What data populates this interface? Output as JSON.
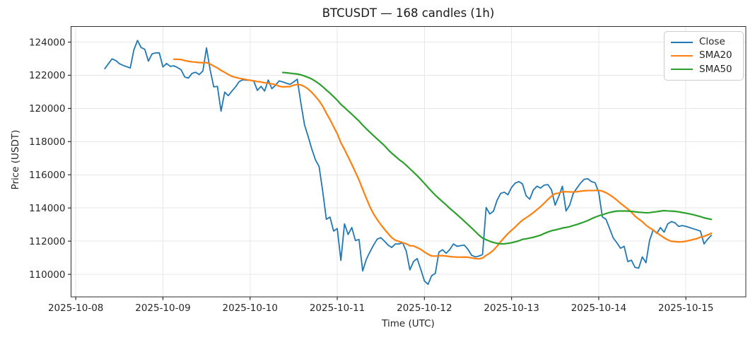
{
  "title": "BTCUSDT — 168 candles (1h)",
  "axes": {
    "x_label": "Time (UTC)",
    "y_label": "Price (USDT)"
  },
  "chart_data": {
    "type": "line",
    "title": "BTCUSDT — 168 candles (1h)",
    "xlabel": "Time (UTC)",
    "ylabel": "Price (USDT)",
    "symbol": "BTCUSDT",
    "interval": "1h",
    "n_candles": 168,
    "first_candle_utc": "2025-10-08 08:00",
    "last_candle_utc": "2025-10-15 07:00",
    "grid": true,
    "grid_color": "#e7e7e7",
    "spine_color": "#2e2e2e",
    "tick_text_color": "#262626",
    "legend_position": "upper right",
    "ylim": [
      108640,
      124940
    ],
    "xlim_hours_from_2025_10_08": [
      -1.3,
      184.5
    ],
    "y_ticks": [
      110000,
      112000,
      114000,
      116000,
      118000,
      120000,
      122000,
      124000
    ],
    "x_ticks": [
      {
        "hour": 0,
        "label": "2025-10-08"
      },
      {
        "hour": 24,
        "label": "2025-10-09"
      },
      {
        "hour": 48,
        "label": "2025-10-10"
      },
      {
        "hour": 72,
        "label": "2025-10-11"
      },
      {
        "hour": 96,
        "label": "2025-10-12"
      },
      {
        "hour": 120,
        "label": "2025-10-13"
      },
      {
        "hour": 144,
        "label": "2025-10-14"
      },
      {
        "hour": 168,
        "label": "2025-10-15"
      }
    ],
    "series": [
      {
        "name": "Close",
        "color": "#1f77b4",
        "line_width": 1.8,
        "values": [
          122400,
          122700,
          122990,
          122890,
          122700,
          122600,
          122520,
          122440,
          123530,
          124100,
          123670,
          123570,
          122850,
          123290,
          123350,
          123350,
          122500,
          122710,
          122540,
          122570,
          122470,
          122330,
          121900,
          121830,
          122110,
          122180,
          122040,
          122260,
          123650,
          122330,
          121300,
          121330,
          119840,
          120980,
          120770,
          121050,
          121300,
          121620,
          121730,
          121700,
          121700,
          121650,
          121090,
          121330,
          121050,
          121715,
          121190,
          121400,
          121660,
          121600,
          121520,
          121450,
          121600,
          121760,
          120300,
          119000,
          118300,
          117550,
          116900,
          116500,
          115000,
          113320,
          113450,
          112610,
          112760,
          110840,
          113040,
          112400,
          112820,
          112040,
          112100,
          110200,
          110900,
          111350,
          111760,
          112120,
          112210,
          112000,
          111760,
          111620,
          111830,
          111830,
          111900,
          111400,
          110270,
          110770,
          110950,
          110300,
          109600,
          109400,
          109920,
          110060,
          111340,
          111480,
          111270,
          111500,
          111830,
          111690,
          111730,
          111760,
          111500,
          111150,
          111050,
          111100,
          111190,
          114030,
          113640,
          113800,
          114460,
          114880,
          114950,
          114800,
          115240,
          115500,
          115590,
          115450,
          114740,
          114530,
          115090,
          115310,
          115200,
          115380,
          115410,
          115090,
          114170,
          114700,
          115310,
          113820,
          114170,
          114880,
          115200,
          115500,
          115730,
          115760,
          115590,
          115520,
          114950,
          113460,
          113320,
          112760,
          112190,
          111900,
          111570,
          111690,
          110770,
          110850,
          110420,
          110370,
          111050,
          110700,
          112040,
          112680,
          112470,
          112820,
          112540,
          113040,
          113180,
          113110,
          112890,
          112940,
          112890,
          112820,
          112750,
          112680,
          112610,
          111830,
          112120,
          112350
        ]
      },
      {
        "name": "SMA20",
        "color": "#ff7f0e",
        "line_width": 2.2,
        "derived_from": "Close",
        "sma_window": 20
      },
      {
        "name": "SMA50",
        "color": "#2ca02c",
        "line_width": 2.2,
        "derived_from": "Close",
        "sma_window": 50
      }
    ]
  }
}
